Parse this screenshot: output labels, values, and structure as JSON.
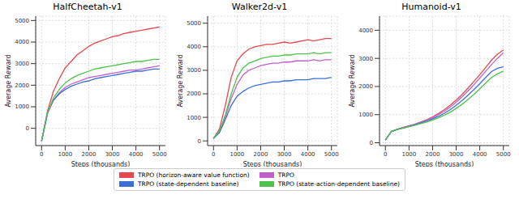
{
  "chart_data": [
    {
      "type": "line",
      "title": "HalfCheetah-v1",
      "x_label": "Steps (thousands)",
      "y_label": "Average Reward",
      "grid": true,
      "legend": "bottom",
      "x": [
        0,
        250,
        500,
        750,
        1000,
        1250,
        1500,
        1750,
        2000,
        2250,
        2500,
        2750,
        3000,
        3250,
        3500,
        3750,
        4000,
        4250,
        4500,
        4750,
        5000
      ],
      "xlim": [
        -250,
        5250
      ],
      "xticks": [
        0,
        1000,
        2000,
        3000,
        4000,
        5000
      ],
      "ylim": [
        -800,
        5200
      ],
      "yticks": [
        0,
        1000,
        2000,
        3000,
        4000,
        5000
      ],
      "series": [
        {
          "name": "TRPO (horizon-aware value function)",
          "color": "#e8474e",
          "values": [
            -600,
            800,
            1700,
            2300,
            2800,
            3100,
            3400,
            3600,
            3800,
            3950,
            4050,
            4150,
            4250,
            4300,
            4400,
            4450,
            4500,
            4550,
            4600,
            4650,
            4700
          ]
        },
        {
          "name": "TRPO",
          "color": "#c061cb",
          "values": [
            -600,
            700,
            1300,
            1650,
            1900,
            2050,
            2150,
            2250,
            2350,
            2400,
            2450,
            2500,
            2550,
            2600,
            2650,
            2700,
            2700,
            2750,
            2800,
            2850,
            2900
          ]
        },
        {
          "name": "TRPO (state-dependent baseline)",
          "color": "#3b6fd6",
          "values": [
            -600,
            700,
            1300,
            1600,
            1800,
            1950,
            2050,
            2150,
            2200,
            2300,
            2350,
            2400,
            2450,
            2500,
            2550,
            2600,
            2650,
            2650,
            2700,
            2750,
            2750
          ]
        },
        {
          "name": "TRPO (state-action-dependent baseline)",
          "color": "#4dc34d",
          "values": [
            -600,
            700,
            1400,
            1800,
            2100,
            2300,
            2450,
            2550,
            2650,
            2750,
            2800,
            2850,
            2900,
            2950,
            3000,
            3050,
            3100,
            3100,
            3150,
            3200,
            3200
          ]
        }
      ]
    },
    {
      "type": "line",
      "title": "Walker2d-v1",
      "x_label": "Steps (thousands)",
      "y_label": "Average Reward",
      "grid": true,
      "legend": "bottom",
      "x": [
        0,
        250,
        500,
        750,
        1000,
        1250,
        1500,
        1750,
        2000,
        2250,
        2500,
        2750,
        3000,
        3250,
        3500,
        3750,
        4000,
        4250,
        4500,
        4750,
        5000
      ],
      "xlim": [
        -250,
        5250
      ],
      "xticks": [
        0,
        1000,
        2000,
        3000,
        4000,
        5000
      ],
      "ylim": [
        -200,
        5300
      ],
      "yticks": [
        0,
        1000,
        2000,
        3000,
        4000,
        5000
      ],
      "series": [
        {
          "name": "TRPO (horizon-aware value function)",
          "color": "#e8474e",
          "values": [
            100,
            500,
            1500,
            2700,
            3400,
            3700,
            3900,
            4000,
            4050,
            4100,
            4100,
            4150,
            4200,
            4150,
            4200,
            4250,
            4300,
            4250,
            4300,
            4350,
            4350
          ]
        },
        {
          "name": "TRPO",
          "color": "#c061cb",
          "values": [
            100,
            400,
            1000,
            1800,
            2400,
            2800,
            3000,
            3100,
            3200,
            3250,
            3300,
            3300,
            3350,
            3350,
            3400,
            3400,
            3400,
            3450,
            3400,
            3450,
            3450
          ]
        },
        {
          "name": "TRPO (state-dependent baseline)",
          "color": "#3b6fd6",
          "values": [
            100,
            350,
            900,
            1500,
            1900,
            2100,
            2250,
            2350,
            2400,
            2450,
            2500,
            2500,
            2550,
            2550,
            2600,
            2600,
            2600,
            2650,
            2650,
            2650,
            2700
          ]
        },
        {
          "name": "TRPO (state-action-dependent baseline)",
          "color": "#4dc34d",
          "values": [
            100,
            400,
            1100,
            2000,
            2700,
            3100,
            3300,
            3400,
            3500,
            3550,
            3600,
            3600,
            3650,
            3650,
            3700,
            3700,
            3700,
            3750,
            3700,
            3750,
            3750
          ]
        }
      ]
    },
    {
      "type": "line",
      "title": "Humanoid-v1",
      "x_label": "Steps (thousands)",
      "y_label": "Average Reward",
      "grid": true,
      "legend": "bottom",
      "x": [
        0,
        250,
        500,
        750,
        1000,
        1250,
        1500,
        1750,
        2000,
        2250,
        2500,
        2750,
        3000,
        3250,
        3500,
        3750,
        4000,
        4250,
        4500,
        4750,
        5000
      ],
      "xlim": [
        -250,
        5250
      ],
      "xticks": [
        0,
        1000,
        2000,
        3000,
        4000,
        5000
      ],
      "ylim": [
        -100,
        4500
      ],
      "yticks": [
        0,
        1000,
        2000,
        3000,
        4000
      ],
      "series": [
        {
          "name": "TRPO (horizon-aware value function)",
          "color": "#e8474e",
          "values": [
            100,
            400,
            480,
            540,
            600,
            660,
            740,
            820,
            920,
            1040,
            1180,
            1340,
            1520,
            1720,
            1940,
            2180,
            2420,
            2680,
            2940,
            3150,
            3300
          ]
        },
        {
          "name": "TRPO",
          "color": "#c061cb",
          "values": [
            100,
            400,
            480,
            540,
            600,
            660,
            730,
            800,
            890,
            1000,
            1120,
            1270,
            1440,
            1630,
            1840,
            2060,
            2300,
            2540,
            2780,
            3000,
            3200
          ]
        },
        {
          "name": "TRPO (state-dependent baseline)",
          "color": "#3b6fd6",
          "values": [
            100,
            400,
            470,
            520,
            580,
            640,
            700,
            770,
            850,
            940,
            1050,
            1180,
            1330,
            1500,
            1690,
            1890,
            2100,
            2320,
            2530,
            2650,
            2700
          ]
        },
        {
          "name": "TRPO (state-action-dependent baseline)",
          "color": "#4dc34d",
          "values": [
            100,
            400,
            470,
            520,
            570,
            620,
            680,
            740,
            810,
            890,
            980,
            1090,
            1220,
            1370,
            1540,
            1720,
            1920,
            2120,
            2320,
            2450,
            2550
          ]
        }
      ]
    }
  ]
}
